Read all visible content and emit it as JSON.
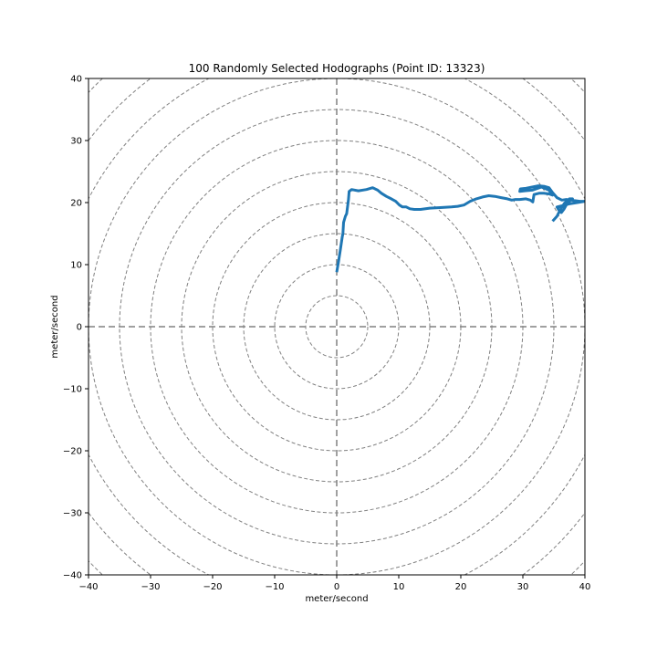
{
  "chart_data": {
    "type": "line",
    "title": "100 Randomly Selected Hodographs (Point ID: 13323)",
    "xlabel": "meter/second",
    "ylabel": "meter/second",
    "xlim": [
      -40,
      40
    ],
    "ylim": [
      -40,
      40
    ],
    "xticks": [
      -40,
      -30,
      -20,
      -10,
      0,
      10,
      20,
      30,
      40
    ],
    "yticks": [
      -40,
      -30,
      -20,
      -10,
      0,
      10,
      20,
      30,
      40
    ],
    "xtick_labels": [
      "−40",
      "−30",
      "−20",
      "−10",
      "0",
      "10",
      "20",
      "30",
      "40"
    ],
    "ytick_labels": [
      "−40",
      "−30",
      "−20",
      "−10",
      "0",
      "10",
      "20",
      "30",
      "40"
    ],
    "range_rings": [
      5,
      10,
      15,
      20,
      25,
      30,
      35,
      40,
      45,
      50,
      55
    ],
    "grid": "dashed range rings and dashed zero axes",
    "series": [
      {
        "color": "#1f77b4",
        "x": [
          0.0,
          0.3,
          0.6,
          0.9,
          1.0,
          1.1,
          1.4,
          1.6,
          1.9,
          2.0,
          2.4,
          3.5,
          4.8,
          5.8,
          6.6,
          7.2,
          8.0,
          8.8,
          9.5,
          10.1,
          10.6,
          11.2,
          11.8,
          12.5,
          13.5,
          15.0,
          17.0,
          18.5,
          19.5,
          20.5,
          21.5,
          22.5,
          23.5,
          24.5,
          25.5,
          26.5,
          27.5,
          28.2,
          28.8,
          29.5,
          30.5,
          31.2,
          31.6,
          31.8,
          32.6,
          33.4,
          34.2,
          34.8,
          34.2,
          33.0,
          31.5,
          30.3,
          29.5,
          29.6,
          30.5,
          31.5,
          32.5,
          33.5,
          34.2,
          34.8,
          35.5,
          36.3,
          37.0,
          37.7,
          38.5,
          39.2,
          40.0,
          37.5,
          35.5,
          35.8,
          36.2,
          36.6,
          37.0,
          37.4,
          37.7,
          38.0,
          37.5,
          36.7,
          36.0,
          35.5,
          34.8
        ],
        "y": [
          8.8,
          10.5,
          12.5,
          14.5,
          15.0,
          16.8,
          17.8,
          18.2,
          20.5,
          21.8,
          22.1,
          21.9,
          22.1,
          22.4,
          22.0,
          21.5,
          21.0,
          20.6,
          20.2,
          19.6,
          19.3,
          19.3,
          19.0,
          18.9,
          18.9,
          19.1,
          19.2,
          19.3,
          19.4,
          19.6,
          20.2,
          20.6,
          20.9,
          21.1,
          21.0,
          20.8,
          20.6,
          20.4,
          20.5,
          20.5,
          20.6,
          20.4,
          20.1,
          21.3,
          21.5,
          21.5,
          21.4,
          21.2,
          22.0,
          22.5,
          22.0,
          21.9,
          21.8,
          22.2,
          22.3,
          22.5,
          22.7,
          22.6,
          22.4,
          21.6,
          20.8,
          20.4,
          20.5,
          20.4,
          20.3,
          20.2,
          20.2,
          19.8,
          19.3,
          18.8,
          18.4,
          18.9,
          19.6,
          20.1,
          20.4,
          20.6,
          20.6,
          19.9,
          18.8,
          17.8,
          17.0
        ]
      }
    ]
  }
}
